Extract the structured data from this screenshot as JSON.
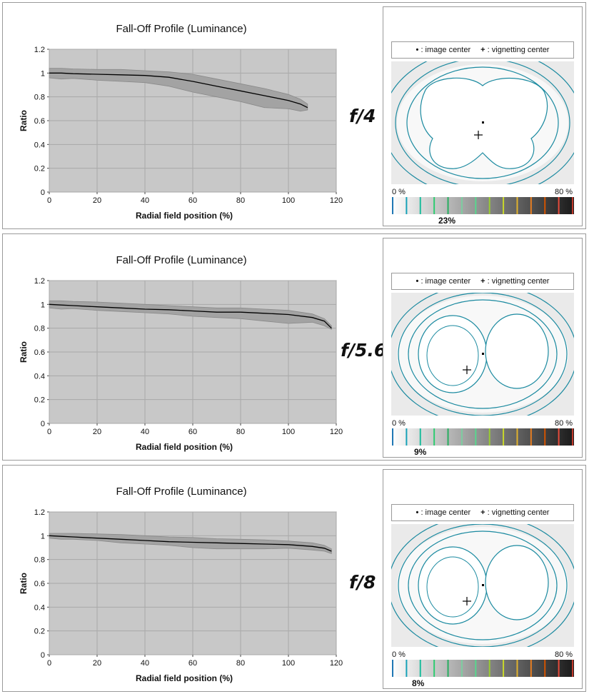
{
  "panels": [
    {
      "fstop": "f/4",
      "vignette_value": "23%",
      "chart_data": {
        "type": "area",
        "title": "Fall-Off Profile (Luminance)",
        "xlabel": "Radial field position (%)",
        "ylabel": "Ratio",
        "xlim": [
          0,
          120
        ],
        "ylim": [
          0,
          1.2
        ],
        "xticks": [
          "0",
          "20",
          "40",
          "60",
          "80",
          "100",
          "120"
        ],
        "yticks": [
          "0",
          "0.2",
          "0.4",
          "0.6",
          "0.8",
          "1",
          "1.2"
        ],
        "grid": true,
        "x": [
          0,
          5,
          10,
          20,
          30,
          40,
          50,
          60,
          70,
          80,
          90,
          100,
          105,
          108
        ],
        "y": [
          1.0,
          1.0,
          0.995,
          0.99,
          0.985,
          0.98,
          0.965,
          0.93,
          0.89,
          0.85,
          0.81,
          0.77,
          0.74,
          0.71
        ],
        "upper": [
          1.04,
          1.04,
          1.035,
          1.03,
          1.03,
          1.02,
          1.01,
          0.99,
          0.95,
          0.91,
          0.87,
          0.82,
          0.78,
          0.74
        ],
        "lower": [
          0.96,
          0.95,
          0.955,
          0.94,
          0.93,
          0.92,
          0.89,
          0.84,
          0.8,
          0.76,
          0.71,
          0.7,
          0.68,
          0.69
        ]
      }
    },
    {
      "fstop": "f/5.6",
      "vignette_value": "9%",
      "chart_data": {
        "type": "area",
        "title": "Fall-Off Profile (Luminance)",
        "xlabel": "Radial field position (%)",
        "ylabel": "Ratio",
        "xlim": [
          0,
          120
        ],
        "ylim": [
          0,
          1.2
        ],
        "xticks": [
          "0",
          "20",
          "40",
          "60",
          "80",
          "100",
          "120"
        ],
        "yticks": [
          "0",
          "0.2",
          "0.4",
          "0.6",
          "0.8",
          "1",
          "1.2"
        ],
        "grid": true,
        "x": [
          0,
          5,
          10,
          20,
          30,
          40,
          50,
          60,
          70,
          80,
          90,
          100,
          110,
          115,
          118
        ],
        "y": [
          1.0,
          0.995,
          0.99,
          0.98,
          0.97,
          0.96,
          0.955,
          0.945,
          0.935,
          0.935,
          0.925,
          0.915,
          0.89,
          0.86,
          0.8
        ],
        "upper": [
          1.03,
          1.03,
          1.025,
          1.02,
          1.01,
          1.0,
          0.99,
          0.98,
          0.97,
          0.97,
          0.96,
          0.95,
          0.92,
          0.88,
          0.82
        ],
        "lower": [
          0.97,
          0.96,
          0.965,
          0.95,
          0.94,
          0.93,
          0.92,
          0.9,
          0.89,
          0.88,
          0.86,
          0.84,
          0.85,
          0.82,
          0.79
        ]
      }
    },
    {
      "fstop": "f/8",
      "vignette_value": "8%",
      "chart_data": {
        "type": "area",
        "title": "Fall-Off Profile (Luminance)",
        "xlabel": "Radial field position (%)",
        "ylabel": "Ratio",
        "xlim": [
          0,
          120
        ],
        "ylim": [
          0,
          1.2
        ],
        "xticks": [
          "0",
          "20",
          "40",
          "60",
          "80",
          "100",
          "120"
        ],
        "yticks": [
          "0",
          "0.2",
          "0.4",
          "0.6",
          "0.8",
          "1",
          "1.2"
        ],
        "grid": true,
        "x": [
          0,
          5,
          10,
          20,
          30,
          40,
          50,
          60,
          70,
          80,
          90,
          100,
          110,
          115,
          118
        ],
        "y": [
          1.0,
          0.995,
          0.99,
          0.98,
          0.97,
          0.96,
          0.95,
          0.945,
          0.94,
          0.935,
          0.93,
          0.925,
          0.91,
          0.895,
          0.87
        ],
        "upper": [
          1.02,
          1.02,
          1.02,
          1.015,
          1.01,
          1.0,
          0.99,
          0.985,
          0.975,
          0.97,
          0.965,
          0.955,
          0.94,
          0.92,
          0.89
        ],
        "lower": [
          0.98,
          0.97,
          0.97,
          0.96,
          0.94,
          0.93,
          0.92,
          0.9,
          0.89,
          0.89,
          0.89,
          0.895,
          0.88,
          0.87,
          0.85
        ]
      }
    }
  ],
  "legend": {
    "image_center_marker": "•",
    "image_center_label": ": image center",
    "vignetting_center_marker": "+",
    "vignetting_center_label": ": vignetting center"
  },
  "scale": {
    "left_label": "0 %",
    "right_label": "80 %",
    "line_colors": [
      "#1f77b4",
      "#17a2b8",
      "#1abc9c",
      "#2ecc71",
      "#27ae60",
      "#7dcea0",
      "#58d68d",
      "#9acd32",
      "#c8d82a",
      "#e0b22f",
      "#e67e22",
      "#d35400",
      "#e74c3c",
      "#c0392b"
    ]
  },
  "colors": {
    "plot_bg": "#c8c8c8",
    "band": "#a3a3a3",
    "band_edge": "#8a8a8a",
    "line": "#000000",
    "contour": "#1b8aa0"
  }
}
